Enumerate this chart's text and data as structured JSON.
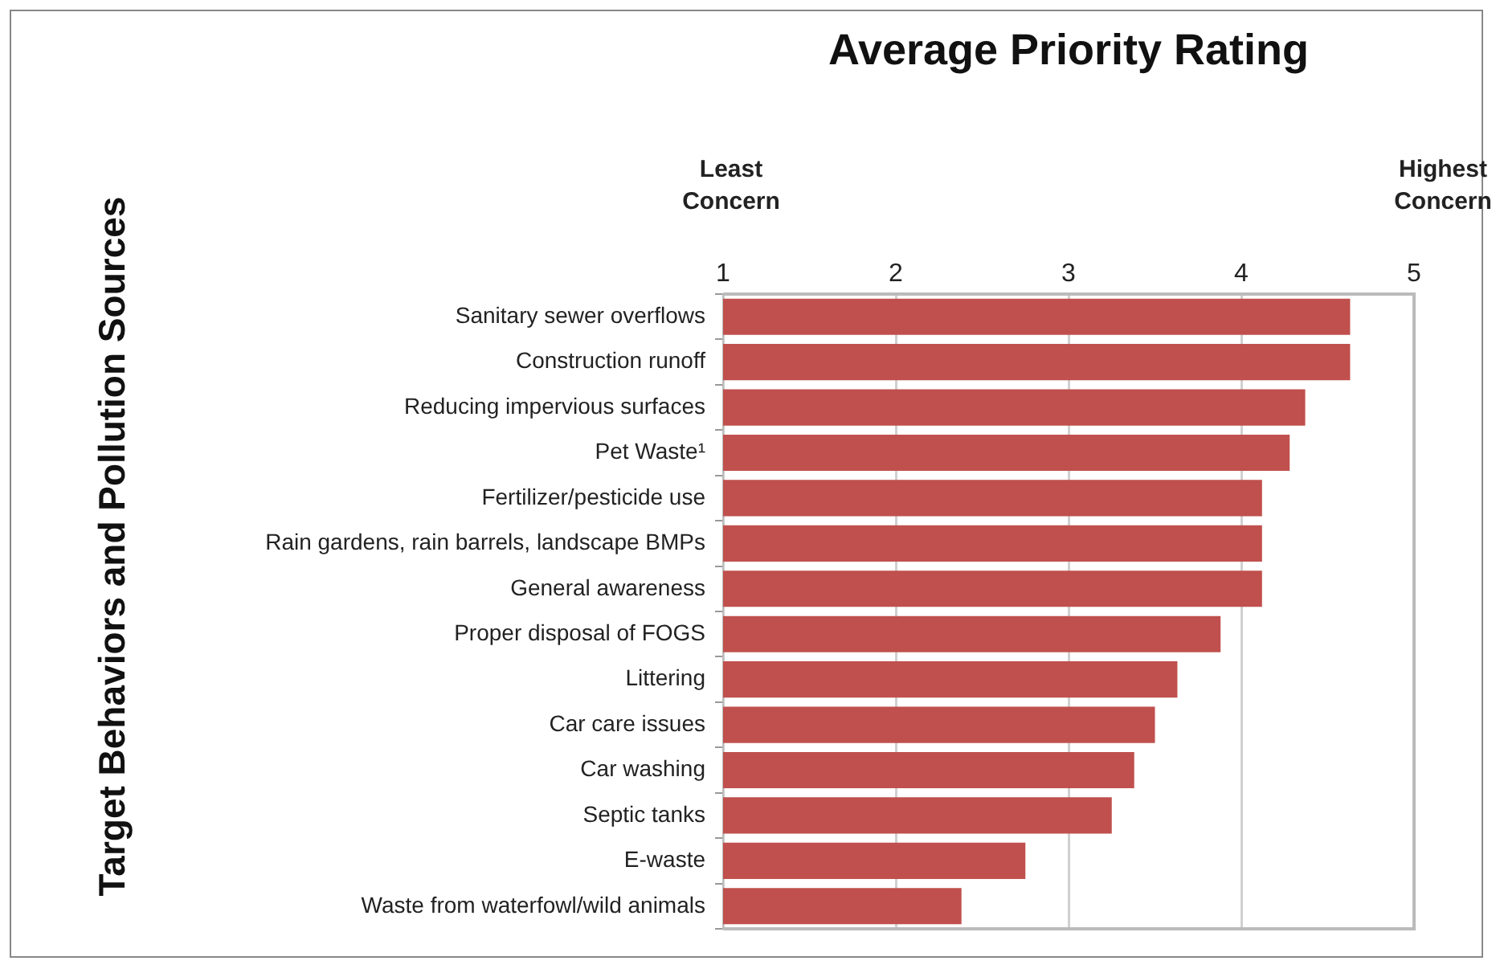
{
  "chart_data": {
    "type": "bar",
    "orientation": "horizontal",
    "title": "Average Priority Rating",
    "ylabel": "Target Behaviors and Pollution Sources",
    "annotations": [
      "Least\nConcern",
      "Highest\nConcern"
    ],
    "categories": [
      "Sanitary sewer overflows",
      "Construction runoff",
      "Reducing impervious surfaces",
      "Pet Waste¹",
      "Fertilizer/pesticide use",
      "Rain gardens, rain barrels, landscape BMPs",
      "General awareness",
      "Proper disposal of FOGS",
      "Littering",
      "Car care issues",
      "Car washing",
      "Septic tanks",
      "E-waste",
      "Waste from waterfowl/wild animals"
    ],
    "values": [
      4.63,
      4.63,
      4.37,
      4.28,
      4.12,
      4.12,
      4.12,
      3.88,
      3.63,
      3.5,
      3.38,
      3.25,
      2.75,
      2.38
    ],
    "color": "#c0504d",
    "xlim": [
      1,
      5
    ],
    "xticks": [
      1,
      2,
      3,
      4,
      5
    ],
    "grid": "x",
    "legend": false
  }
}
